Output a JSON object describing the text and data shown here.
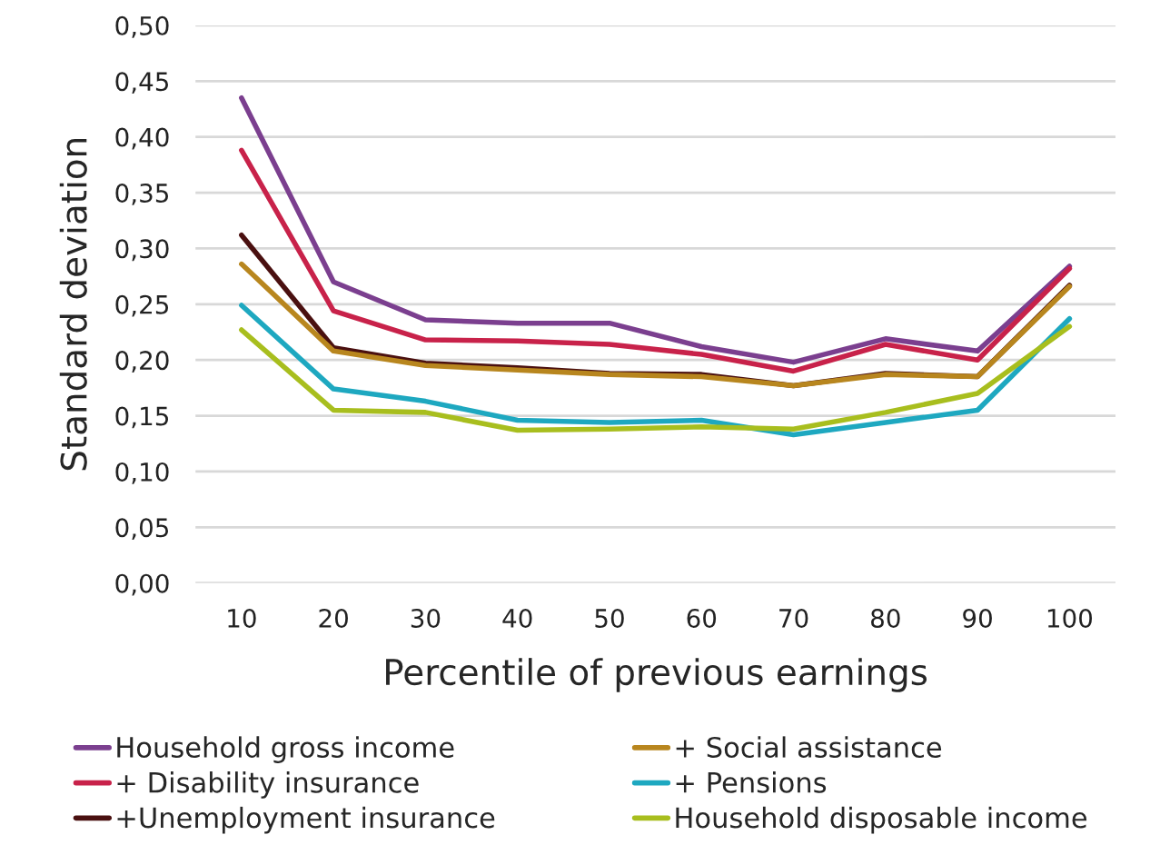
{
  "chart_data": {
    "type": "line",
    "xlabel": "Percentile of previous earnings",
    "ylabel": "Standard deviation",
    "categories": [
      "10",
      "20",
      "30",
      "40",
      "50",
      "60",
      "70",
      "80",
      "90",
      "100"
    ],
    "ylim": [
      0,
      0.5
    ],
    "yticks": [
      {
        "value": 0,
        "label": "0,00"
      },
      {
        "value": 0.05,
        "label": "0,05"
      },
      {
        "value": 0.1,
        "label": "0,10"
      },
      {
        "value": 0.15,
        "label": "0,15"
      },
      {
        "value": 0.2,
        "label": "0,20"
      },
      {
        "value": 0.25,
        "label": "0,25"
      },
      {
        "value": 0.3,
        "label": "0,30"
      },
      {
        "value": 0.35,
        "label": "0,35"
      },
      {
        "value": 0.4,
        "label": "0,40"
      },
      {
        "value": 0.45,
        "label": "0,45"
      },
      {
        "value": 0.5,
        "label": "0,50"
      }
    ],
    "grid": "y",
    "legend": "bottom",
    "marker": "none",
    "line_style": "solid",
    "series": [
      {
        "name": "Household gross income",
        "color": "#7b3f8f",
        "values": [
          0.435,
          0.27,
          0.236,
          0.233,
          0.233,
          0.212,
          0.198,
          0.219,
          0.208,
          0.284
        ]
      },
      {
        "name": "+ Disability insurance",
        "color": "#c8224a",
        "values": [
          0.388,
          0.244,
          0.218,
          0.217,
          0.214,
          0.205,
          0.19,
          0.214,
          0.2,
          0.282
        ]
      },
      {
        "name": "+Unemployment insurance",
        "color": "#4a1010",
        "values": [
          0.312,
          0.211,
          0.197,
          0.193,
          0.188,
          0.187,
          0.177,
          0.188,
          0.185,
          0.267
        ]
      },
      {
        "name": "+ Social assistance",
        "color": "#b8861e",
        "values": [
          0.286,
          0.208,
          0.195,
          0.191,
          0.187,
          0.185,
          0.177,
          0.187,
          0.185,
          0.266
        ]
      },
      {
        "name": "+ Pensions",
        "color": "#1ea8c0",
        "values": [
          0.249,
          0.174,
          0.163,
          0.146,
          0.144,
          0.146,
          0.133,
          0.144,
          0.155,
          0.237
        ]
      },
      {
        "name": "Household disposable income",
        "color": "#a8be1e",
        "values": [
          0.227,
          0.155,
          0.153,
          0.137,
          0.138,
          0.14,
          0.138,
          0.153,
          0.17,
          0.23
        ]
      }
    ]
  }
}
